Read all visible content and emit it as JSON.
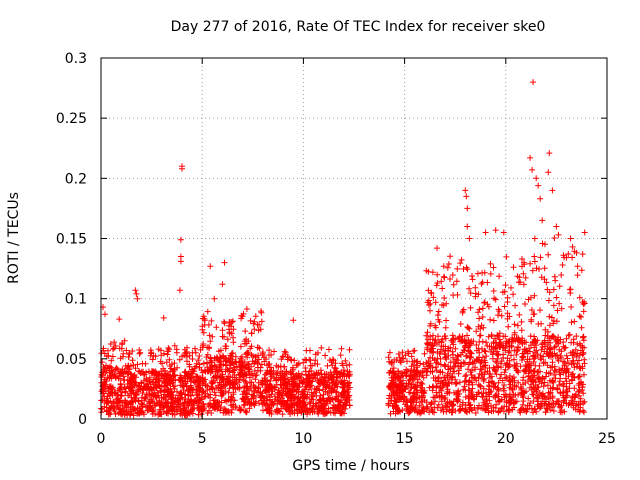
{
  "chart_data": {
    "type": "scatter",
    "title": "Day 277 of 2016, Rate Of TEC Index for receiver ske0",
    "xlabel": "GPS time / hours",
    "ylabel": "ROTI / TECUs",
    "xlim": [
      0,
      25
    ],
    "ylim": [
      0,
      0.3
    ],
    "xticks": [
      0,
      5,
      10,
      15,
      20,
      25
    ],
    "yticks": [
      0,
      0.05,
      0.1,
      0.15,
      0.2,
      0.25,
      0.3
    ],
    "xtick_labels": [
      "0",
      "5",
      "10",
      "15",
      "20",
      "25"
    ],
    "ytick_labels": [
      "0",
      "0.05",
      "0.1",
      "0.15",
      "0.2",
      "0.25",
      "0.3"
    ],
    "grid": true,
    "marker": "+",
    "marker_color": "#ff0000",
    "density_profile": [
      {
        "x_start": 0.0,
        "x_end": 1.5,
        "y_low": 0.003,
        "y_typical": 0.045,
        "y_high": 0.065
      },
      {
        "x_start": 1.5,
        "x_end": 5.0,
        "y_low": 0.003,
        "y_typical": 0.04,
        "y_high": 0.06
      },
      {
        "x_start": 5.0,
        "x_end": 8.0,
        "y_low": 0.005,
        "y_typical": 0.055,
        "y_high": 0.09
      },
      {
        "x_start": 8.0,
        "x_end": 12.3,
        "y_low": 0.004,
        "y_typical": 0.04,
        "y_high": 0.057
      },
      {
        "x_start": 14.2,
        "x_end": 16.0,
        "y_low": 0.004,
        "y_typical": 0.04,
        "y_high": 0.055
      },
      {
        "x_start": 16.0,
        "x_end": 21.0,
        "y_low": 0.005,
        "y_typical": 0.07,
        "y_high": 0.13
      },
      {
        "x_start": 21.0,
        "x_end": 23.9,
        "y_low": 0.005,
        "y_typical": 0.07,
        "y_high": 0.14
      }
    ],
    "gaps": [
      [
        12.3,
        14.2
      ]
    ],
    "notable_points": [
      {
        "x": 0.1,
        "y": 0.093
      },
      {
        "x": 0.2,
        "y": 0.087
      },
      {
        "x": 0.9,
        "y": 0.083
      },
      {
        "x": 1.7,
        "y": 0.107
      },
      {
        "x": 1.75,
        "y": 0.104
      },
      {
        "x": 1.8,
        "y": 0.1
      },
      {
        "x": 3.1,
        "y": 0.084
      },
      {
        "x": 3.9,
        "y": 0.107
      },
      {
        "x": 3.95,
        "y": 0.131
      },
      {
        "x": 3.95,
        "y": 0.135
      },
      {
        "x": 3.95,
        "y": 0.149
      },
      {
        "x": 4.0,
        "y": 0.208
      },
      {
        "x": 4.0,
        "y": 0.21
      },
      {
        "x": 5.4,
        "y": 0.127
      },
      {
        "x": 6.1,
        "y": 0.13
      },
      {
        "x": 6.0,
        "y": 0.112
      },
      {
        "x": 5.6,
        "y": 0.1
      },
      {
        "x": 9.5,
        "y": 0.082
      },
      {
        "x": 16.6,
        "y": 0.142
      },
      {
        "x": 16.4,
        "y": 0.122
      },
      {
        "x": 18.0,
        "y": 0.19
      },
      {
        "x": 18.05,
        "y": 0.185
      },
      {
        "x": 18.1,
        "y": 0.175
      },
      {
        "x": 18.1,
        "y": 0.16
      },
      {
        "x": 18.2,
        "y": 0.15
      },
      {
        "x": 19.0,
        "y": 0.155
      },
      {
        "x": 19.5,
        "y": 0.157
      },
      {
        "x": 19.9,
        "y": 0.155
      },
      {
        "x": 20.8,
        "y": 0.133
      },
      {
        "x": 20.9,
        "y": 0.13
      },
      {
        "x": 21.2,
        "y": 0.217
      },
      {
        "x": 21.3,
        "y": 0.207
      },
      {
        "x": 21.35,
        "y": 0.28
      },
      {
        "x": 21.5,
        "y": 0.2
      },
      {
        "x": 21.6,
        "y": 0.194
      },
      {
        "x": 21.7,
        "y": 0.183
      },
      {
        "x": 21.8,
        "y": 0.165
      },
      {
        "x": 22.1,
        "y": 0.205
      },
      {
        "x": 22.15,
        "y": 0.221
      },
      {
        "x": 22.3,
        "y": 0.19
      },
      {
        "x": 22.5,
        "y": 0.16
      },
      {
        "x": 22.6,
        "y": 0.153
      },
      {
        "x": 23.2,
        "y": 0.15
      },
      {
        "x": 23.3,
        "y": 0.143
      },
      {
        "x": 23.9,
        "y": 0.155
      },
      {
        "x": 23.5,
        "y": 0.138
      },
      {
        "x": 23.8,
        "y": 0.137
      }
    ]
  }
}
